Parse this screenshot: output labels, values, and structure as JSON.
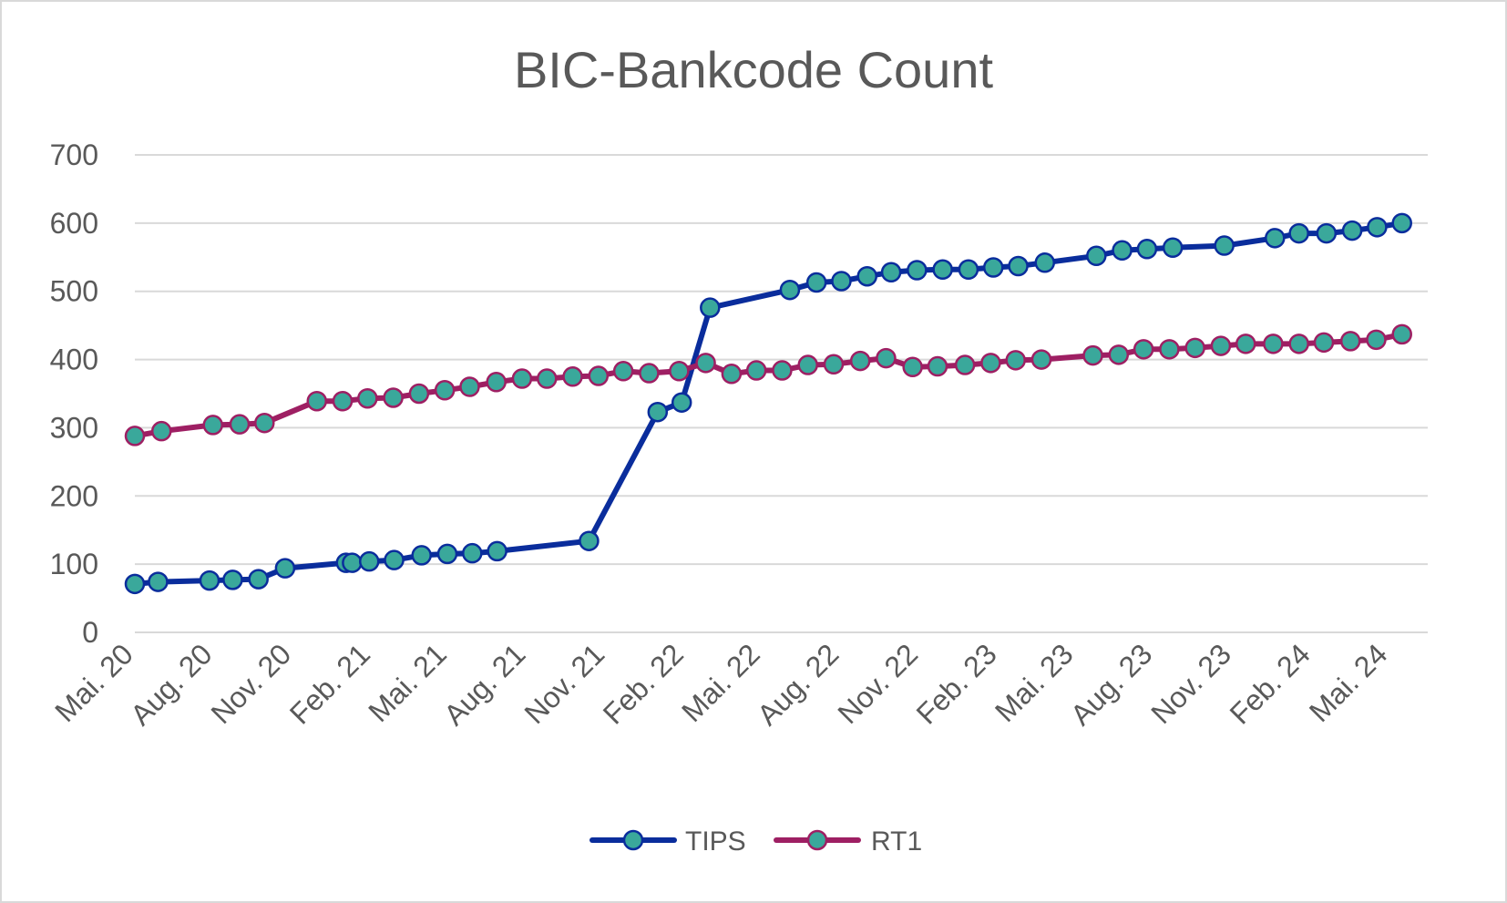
{
  "chart_data": {
    "type": "line",
    "title": "BIC-Bankcode Count",
    "xlabel": "",
    "ylabel": "",
    "ylim": [
      0,
      700
    ],
    "y_ticks": [
      0,
      100,
      200,
      300,
      400,
      500,
      600,
      700
    ],
    "x_range": [
      "2020-05-01",
      "2024-06-15"
    ],
    "x_tick_labels": [
      {
        "label": "Mai. 20",
        "date": "2020-05-01"
      },
      {
        "label": "Aug. 20",
        "date": "2020-08-01"
      },
      {
        "label": "Nov. 20",
        "date": "2020-11-01"
      },
      {
        "label": "Feb. 21",
        "date": "2021-02-01"
      },
      {
        "label": "Mai. 21",
        "date": "2021-05-01"
      },
      {
        "label": "Aug. 21",
        "date": "2021-08-01"
      },
      {
        "label": "Nov. 21",
        "date": "2021-11-01"
      },
      {
        "label": "Feb. 22",
        "date": "2022-02-01"
      },
      {
        "label": "Mai. 22",
        "date": "2022-05-01"
      },
      {
        "label": "Aug. 22",
        "date": "2022-08-01"
      },
      {
        "label": "Nov. 22",
        "date": "2022-11-01"
      },
      {
        "label": "Feb. 23",
        "date": "2023-02-01"
      },
      {
        "label": "Mai. 23",
        "date": "2023-05-01"
      },
      {
        "label": "Aug. 23",
        "date": "2023-08-01"
      },
      {
        "label": "Nov. 23",
        "date": "2023-11-01"
      },
      {
        "label": "Feb. 24",
        "date": "2024-02-01"
      },
      {
        "label": "Mai. 24",
        "date": "2024-05-01"
      }
    ],
    "grid": true,
    "legend_position": "bottom",
    "series": [
      {
        "name": "TIPS",
        "color": "#0a2d9c",
        "marker_color": "#3aa89b",
        "points": [
          {
            "x": "2020-05-01",
            "y": 71
          },
          {
            "x": "2020-05-28",
            "y": 74
          },
          {
            "x": "2020-07-27",
            "y": 76
          },
          {
            "x": "2020-08-23",
            "y": 77
          },
          {
            "x": "2020-09-22",
            "y": 78
          },
          {
            "x": "2020-10-23",
            "y": 94
          },
          {
            "x": "2021-01-02",
            "y": 102
          },
          {
            "x": "2021-01-09",
            "y": 102
          },
          {
            "x": "2021-01-29",
            "y": 104
          },
          {
            "x": "2021-02-27",
            "y": 106
          },
          {
            "x": "2021-03-31",
            "y": 113
          },
          {
            "x": "2021-04-30",
            "y": 115
          },
          {
            "x": "2021-05-29",
            "y": 116
          },
          {
            "x": "2021-06-27",
            "y": 119
          },
          {
            "x": "2021-10-12",
            "y": 134
          },
          {
            "x": "2021-12-31",
            "y": 323
          },
          {
            "x": "2022-01-28",
            "y": 337
          },
          {
            "x": "2022-03-02",
            "y": 476
          },
          {
            "x": "2022-06-03",
            "y": 502
          },
          {
            "x": "2022-07-04",
            "y": 513
          },
          {
            "x": "2022-08-02",
            "y": 515
          },
          {
            "x": "2022-09-01",
            "y": 522
          },
          {
            "x": "2022-09-29",
            "y": 528
          },
          {
            "x": "2022-10-29",
            "y": 531
          },
          {
            "x": "2022-11-28",
            "y": 532
          },
          {
            "x": "2022-12-28",
            "y": 532
          },
          {
            "x": "2023-01-26",
            "y": 535
          },
          {
            "x": "2023-02-24",
            "y": 537
          },
          {
            "x": "2023-03-27",
            "y": 542
          },
          {
            "x": "2023-05-26",
            "y": 552
          },
          {
            "x": "2023-06-25",
            "y": 560
          },
          {
            "x": "2023-07-24",
            "y": 562
          },
          {
            "x": "2023-08-23",
            "y": 564
          },
          {
            "x": "2023-10-22",
            "y": 567
          },
          {
            "x": "2023-12-20",
            "y": 578
          },
          {
            "x": "2024-01-17",
            "y": 585
          },
          {
            "x": "2024-02-18",
            "y": 585
          },
          {
            "x": "2024-03-19",
            "y": 589
          },
          {
            "x": "2024-04-17",
            "y": 594
          },
          {
            "x": "2024-05-16",
            "y": 600
          }
        ]
      },
      {
        "name": "RT1",
        "color": "#9e1f63",
        "marker_color": "#3aa89b",
        "points": [
          {
            "x": "2020-05-01",
            "y": 288
          },
          {
            "x": "2020-06-01",
            "y": 295
          },
          {
            "x": "2020-07-31",
            "y": 304
          },
          {
            "x": "2020-08-31",
            "y": 305
          },
          {
            "x": "2020-09-29",
            "y": 307
          },
          {
            "x": "2020-11-29",
            "y": 339
          },
          {
            "x": "2020-12-29",
            "y": 339
          },
          {
            "x": "2021-01-27",
            "y": 343
          },
          {
            "x": "2021-02-26",
            "y": 344
          },
          {
            "x": "2021-03-28",
            "y": 350
          },
          {
            "x": "2021-04-27",
            "y": 355
          },
          {
            "x": "2021-05-26",
            "y": 360
          },
          {
            "x": "2021-06-26",
            "y": 367
          },
          {
            "x": "2021-07-26",
            "y": 372
          },
          {
            "x": "2021-08-24",
            "y": 372
          },
          {
            "x": "2021-09-23",
            "y": 375
          },
          {
            "x": "2021-10-23",
            "y": 376
          },
          {
            "x": "2021-11-21",
            "y": 383
          },
          {
            "x": "2021-12-21",
            "y": 380
          },
          {
            "x": "2022-01-25",
            "y": 383
          },
          {
            "x": "2022-02-25",
            "y": 395
          },
          {
            "x": "2022-03-27",
            "y": 379
          },
          {
            "x": "2022-04-25",
            "y": 384
          },
          {
            "x": "2022-05-25",
            "y": 384
          },
          {
            "x": "2022-06-24",
            "y": 392
          },
          {
            "x": "2022-07-24",
            "y": 393
          },
          {
            "x": "2022-08-24",
            "y": 398
          },
          {
            "x": "2022-09-23",
            "y": 402
          },
          {
            "x": "2022-10-24",
            "y": 389
          },
          {
            "x": "2022-11-22",
            "y": 390
          },
          {
            "x": "2022-12-24",
            "y": 392
          },
          {
            "x": "2023-01-23",
            "y": 395
          },
          {
            "x": "2023-02-21",
            "y": 399
          },
          {
            "x": "2023-03-23",
            "y": 400
          },
          {
            "x": "2023-05-22",
            "y": 406
          },
          {
            "x": "2023-06-21",
            "y": 407
          },
          {
            "x": "2023-07-20",
            "y": 415
          },
          {
            "x": "2023-08-19",
            "y": 415
          },
          {
            "x": "2023-09-18",
            "y": 417
          },
          {
            "x": "2023-10-18",
            "y": 420
          },
          {
            "x": "2023-11-16",
            "y": 423
          },
          {
            "x": "2023-12-18",
            "y": 423
          },
          {
            "x": "2024-01-17",
            "y": 423
          },
          {
            "x": "2024-02-15",
            "y": 425
          },
          {
            "x": "2024-03-17",
            "y": 427
          },
          {
            "x": "2024-04-16",
            "y": 429
          },
          {
            "x": "2024-05-16",
            "y": 437
          }
        ]
      }
    ]
  }
}
